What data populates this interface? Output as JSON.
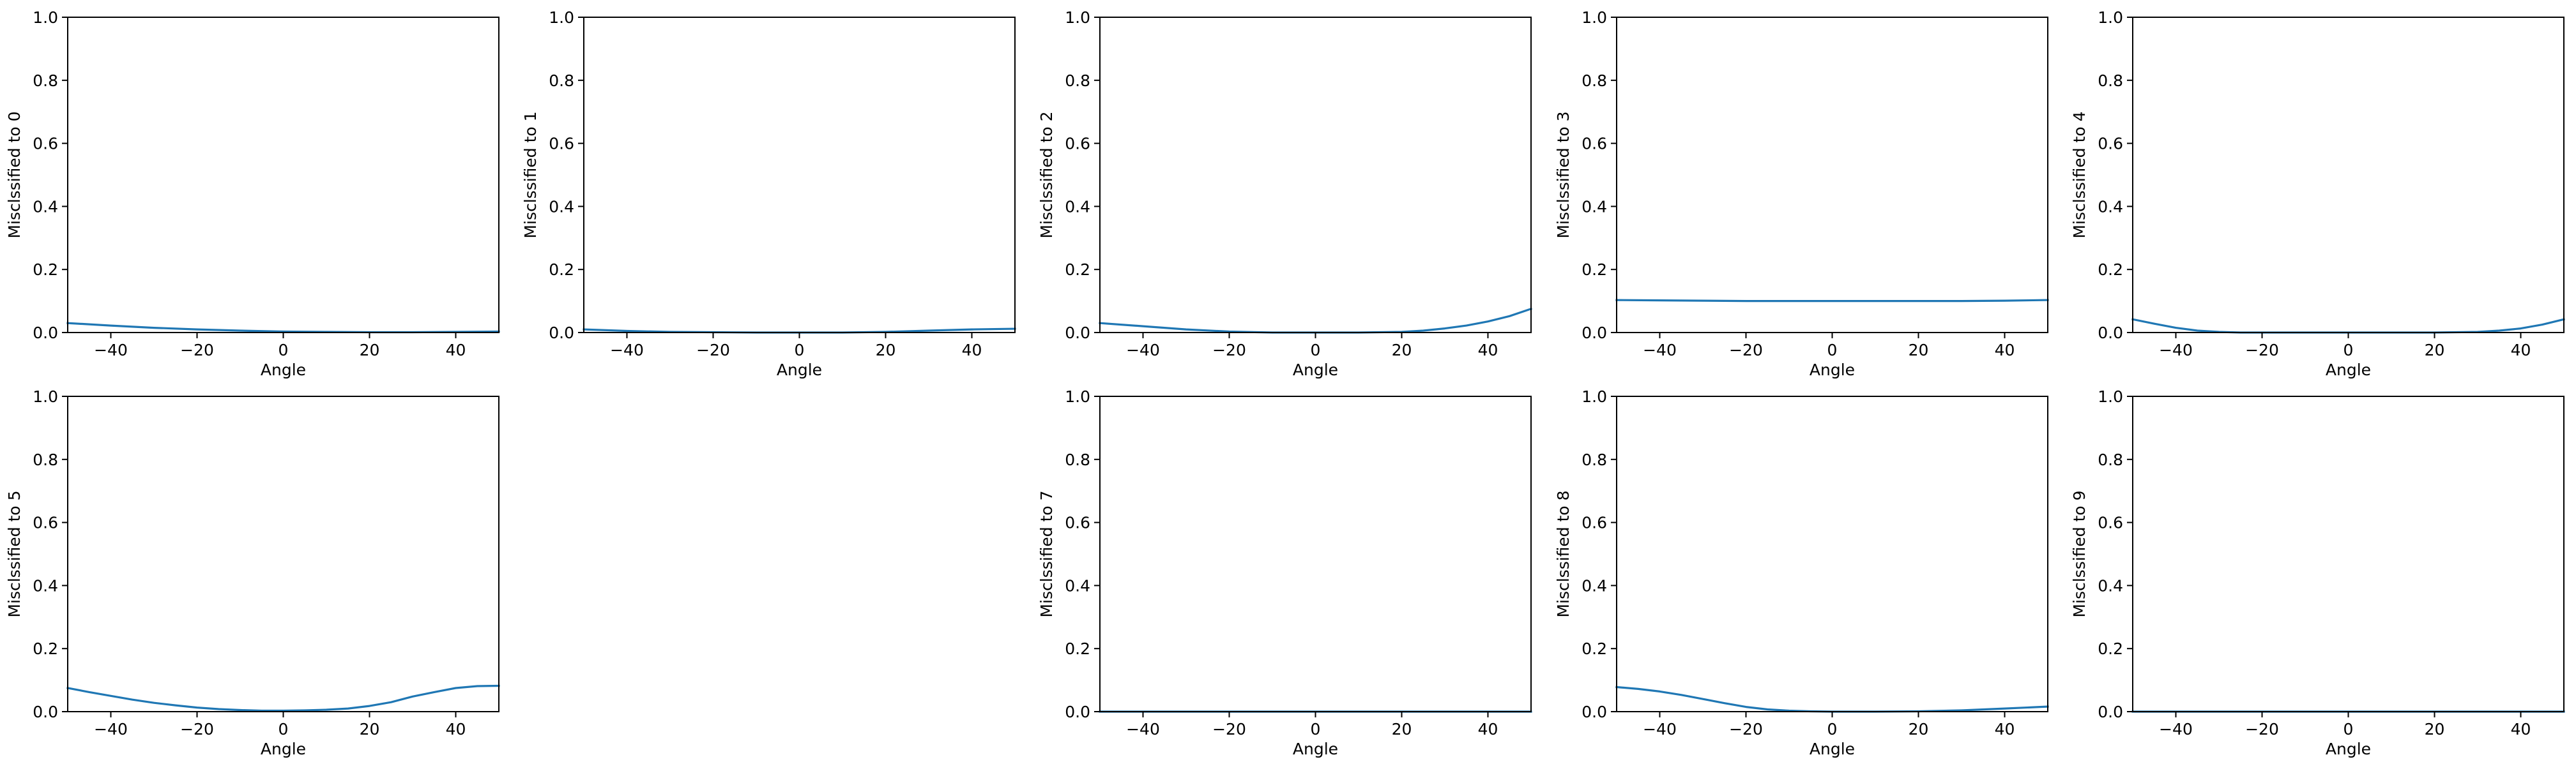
{
  "chart_data": [
    {
      "type": "line",
      "ylabel": "Misclssified to 0",
      "xlabel": "Angle",
      "xlim": [
        -50,
        50
      ],
      "ylim": [
        0,
        1
      ],
      "xticks": [
        "−40",
        "−20",
        "0",
        "20",
        "40"
      ],
      "yticks": [
        "0.0",
        "0.2",
        "0.4",
        "0.6",
        "0.8",
        "1.0"
      ],
      "x": [
        -50,
        -40,
        -30,
        -20,
        -10,
        0,
        10,
        20,
        30,
        40,
        50
      ],
      "y": [
        0.03,
        0.022,
        0.015,
        0.01,
        0.006,
        0.003,
        0.002,
        0.001,
        0.001,
        0.002,
        0.003
      ]
    },
    {
      "type": "line",
      "ylabel": "Misclssified to 1",
      "xlabel": "Angle",
      "xlim": [
        -50,
        50
      ],
      "ylim": [
        0,
        1
      ],
      "xticks": [
        "−40",
        "−20",
        "0",
        "20",
        "40"
      ],
      "yticks": [
        "0.0",
        "0.2",
        "0.4",
        "0.6",
        "0.8",
        "1.0"
      ],
      "x": [
        -50,
        -40,
        -30,
        -20,
        -10,
        0,
        10,
        20,
        30,
        40,
        50
      ],
      "y": [
        0.01,
        0.005,
        0.002,
        0.001,
        0.0,
        0.0,
        0.0,
        0.002,
        0.006,
        0.01,
        0.012
      ]
    },
    {
      "type": "line",
      "ylabel": "Misclssified to 2",
      "xlabel": "Angle",
      "xlim": [
        -50,
        50
      ],
      "ylim": [
        0,
        1
      ],
      "xticks": [
        "−40",
        "−20",
        "0",
        "20",
        "40"
      ],
      "yticks": [
        "0.0",
        "0.2",
        "0.4",
        "0.6",
        "0.8",
        "1.0"
      ],
      "x": [
        -50,
        -40,
        -30,
        -20,
        -10,
        0,
        10,
        20,
        25,
        30,
        35,
        40,
        45,
        50
      ],
      "y": [
        0.03,
        0.02,
        0.01,
        0.003,
        0.0,
        0.0,
        0.0,
        0.002,
        0.006,
        0.013,
        0.022,
        0.035,
        0.052,
        0.075
      ]
    },
    {
      "type": "line",
      "ylabel": "Misclssified to 3",
      "xlabel": "Angle",
      "xlim": [
        -50,
        50
      ],
      "ylim": [
        0,
        1
      ],
      "xticks": [
        "−40",
        "−20",
        "0",
        "20",
        "40"
      ],
      "yticks": [
        "0.0",
        "0.2",
        "0.4",
        "0.6",
        "0.8",
        "1.0"
      ],
      "x": [
        -50,
        -40,
        -30,
        -20,
        -10,
        0,
        10,
        20,
        30,
        40,
        50
      ],
      "y": [
        0.103,
        0.102,
        0.101,
        0.1,
        0.1,
        0.1,
        0.1,
        0.1,
        0.1,
        0.101,
        0.103
      ]
    },
    {
      "type": "line",
      "ylabel": "Misclssified to 4",
      "xlabel": "Angle",
      "xlim": [
        -50,
        50
      ],
      "ylim": [
        0,
        1
      ],
      "xticks": [
        "−40",
        "−20",
        "0",
        "20",
        "40"
      ],
      "yticks": [
        "0.0",
        "0.2",
        "0.4",
        "0.6",
        "0.8",
        "1.0"
      ],
      "x": [
        -50,
        -45,
        -40,
        -35,
        -30,
        -25,
        -20,
        0,
        20,
        25,
        30,
        35,
        40,
        45,
        50
      ],
      "y": [
        0.042,
        0.028,
        0.015,
        0.006,
        0.002,
        0.0,
        0.0,
        0.0,
        0.0,
        0.001,
        0.002,
        0.006,
        0.013,
        0.025,
        0.042
      ]
    },
    {
      "type": "line",
      "ylabel": "Misclssified to 5",
      "xlabel": "Angle",
      "xlim": [
        -50,
        50
      ],
      "ylim": [
        0,
        1
      ],
      "xticks": [
        "−40",
        "−20",
        "0",
        "20",
        "40"
      ],
      "yticks": [
        "0.0",
        "0.2",
        "0.4",
        "0.6",
        "0.8",
        "1.0"
      ],
      "x": [
        -50,
        -45,
        -40,
        -35,
        -30,
        -25,
        -20,
        -15,
        -10,
        -5,
        0,
        5,
        10,
        15,
        20,
        25,
        30,
        35,
        40,
        45,
        50
      ],
      "y": [
        0.075,
        0.062,
        0.05,
        0.038,
        0.028,
        0.02,
        0.013,
        0.008,
        0.005,
        0.003,
        0.003,
        0.004,
        0.006,
        0.01,
        0.018,
        0.03,
        0.048,
        0.062,
        0.075,
        0.081,
        0.082
      ]
    },
    null,
    {
      "type": "line",
      "ylabel": "Misclssified to 7",
      "xlabel": "Angle",
      "xlim": [
        -50,
        50
      ],
      "ylim": [
        0,
        1
      ],
      "xticks": [
        "−40",
        "−20",
        "0",
        "20",
        "40"
      ],
      "yticks": [
        "0.0",
        "0.2",
        "0.4",
        "0.6",
        "0.8",
        "1.0"
      ],
      "x": [
        -50,
        -25,
        0,
        25,
        50
      ],
      "y": [
        0.0,
        0.0,
        0.0,
        0.0,
        0.0
      ]
    },
    {
      "type": "line",
      "ylabel": "Misclssified to 8",
      "xlabel": "Angle",
      "xlim": [
        -50,
        50
      ],
      "ylim": [
        0,
        1
      ],
      "xticks": [
        "−40",
        "−20",
        "0",
        "20",
        "40"
      ],
      "yticks": [
        "0.0",
        "0.2",
        "0.4",
        "0.6",
        "0.8",
        "1.0"
      ],
      "x": [
        -50,
        -45,
        -40,
        -35,
        -30,
        -25,
        -20,
        -15,
        -10,
        -5,
        0,
        10,
        20,
        30,
        40,
        50
      ],
      "y": [
        0.078,
        0.072,
        0.064,
        0.053,
        0.04,
        0.027,
        0.015,
        0.007,
        0.003,
        0.001,
        0.0,
        0.0,
        0.001,
        0.004,
        0.01,
        0.016
      ]
    },
    {
      "type": "line",
      "ylabel": "Misclssified to 9",
      "xlabel": "Angle",
      "xlim": [
        -50,
        50
      ],
      "ylim": [
        0,
        1
      ],
      "xticks": [
        "−40",
        "−20",
        "0",
        "20",
        "40"
      ],
      "yticks": [
        "0.0",
        "0.2",
        "0.4",
        "0.6",
        "0.8",
        "1.0"
      ],
      "x": [
        -50,
        -25,
        0,
        25,
        50
      ],
      "y": [
        0.0,
        0.0,
        0.0,
        0.0,
        0.0
      ]
    }
  ],
  "style": {
    "line_color": "#1f77b4",
    "axis_color": "#000000",
    "background": "#ffffff"
  }
}
